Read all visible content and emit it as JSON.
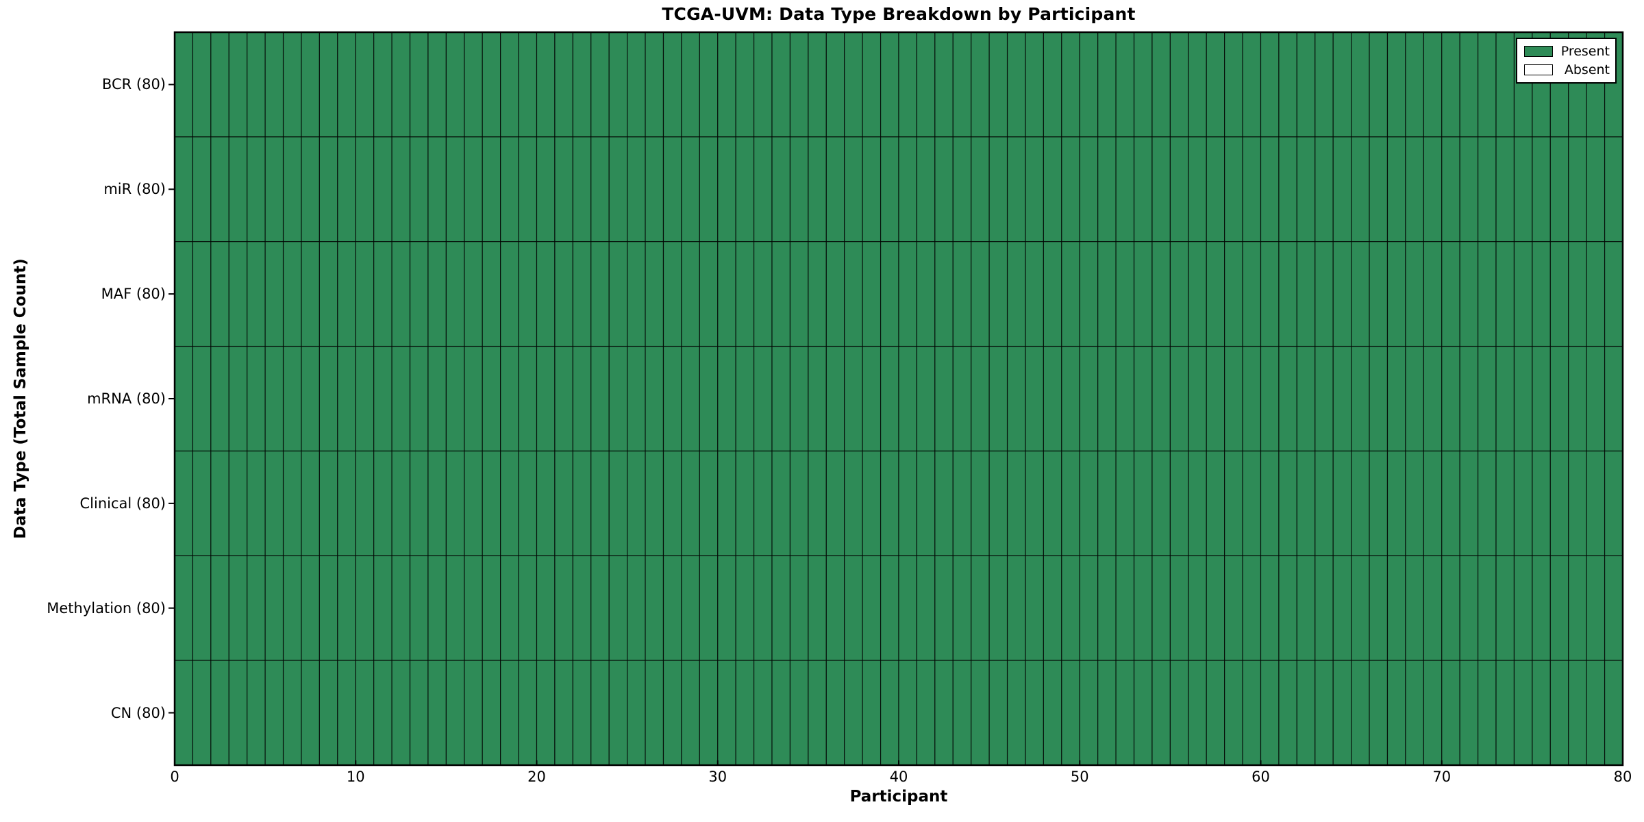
{
  "chart_data": {
    "type": "heatmap",
    "title": "TCGA-UVM: Data Type Breakdown by Participant",
    "xlabel": "Participant",
    "ylabel": "Data Type (Total Sample Count)",
    "xlim": [
      0,
      80
    ],
    "x_ticks": [
      0,
      10,
      20,
      30,
      40,
      50,
      60,
      70,
      80
    ],
    "n_participants": 80,
    "grid": "on",
    "rows": [
      {
        "label": "BCR (80)",
        "total_samples": 80,
        "present_count": 80,
        "absent_count": 0
      },
      {
        "label": "miR (80)",
        "total_samples": 80,
        "present_count": 80,
        "absent_count": 0
      },
      {
        "label": "MAF (80)",
        "total_samples": 80,
        "present_count": 80,
        "absent_count": 0
      },
      {
        "label": "mRNA (80)",
        "total_samples": 80,
        "present_count": 80,
        "absent_count": 0
      },
      {
        "label": "Clinical (80)",
        "total_samples": 80,
        "present_count": 80,
        "absent_count": 0
      },
      {
        "label": "Methylation (80)",
        "total_samples": 80,
        "present_count": 80,
        "absent_count": 0
      },
      {
        "label": "CN (80)",
        "total_samples": 80,
        "present_count": 80,
        "absent_count": 0
      }
    ],
    "all_cells_present": true,
    "legend": {
      "position": "top-right",
      "items": [
        {
          "label": "Present",
          "color": "#2E8B57"
        },
        {
          "label": "Absent",
          "color": "#FFFFFF"
        }
      ]
    },
    "colors": {
      "present": "#2E8B57",
      "absent": "#FFFFFF",
      "cell_line": "rgba(0,0,0,0.8)",
      "axis_line": "#000000",
      "background": "#FFFFFF"
    }
  }
}
